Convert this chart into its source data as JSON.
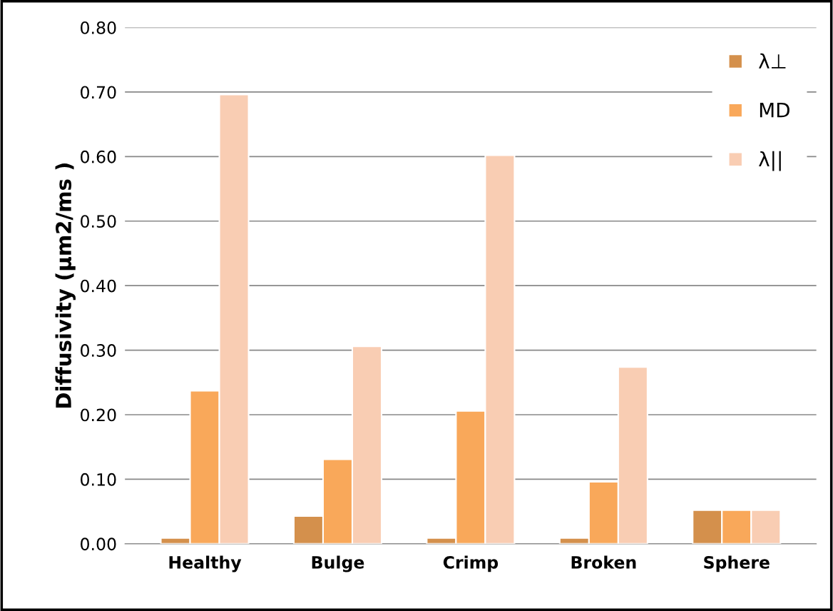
{
  "chart_data": {
    "type": "bar",
    "ylabel": "Diffusivity (μm2/ms )",
    "categories": [
      "Healthy",
      "Bulge",
      "Crimp",
      "Broken",
      "Sphere"
    ],
    "series": [
      {
        "name": "λ⊥",
        "color": "#d4904c",
        "values": [
          0.009,
          0.043,
          0.009,
          0.009,
          0.052
        ]
      },
      {
        "name": "MD",
        "color": "#f9a85a",
        "values": [
          0.237,
          0.131,
          0.206,
          0.096,
          0.052
        ]
      },
      {
        "name": "λ||",
        "color": "#f9cdb3",
        "values": [
          0.696,
          0.306,
          0.602,
          0.274,
          0.052
        ]
      }
    ],
    "ylim": [
      0,
      0.8
    ],
    "yticks": [
      {
        "value": 0,
        "label": "0.00"
      },
      {
        "value": 0.1,
        "label": "0.10"
      },
      {
        "value": 0.2,
        "label": "0.20"
      },
      {
        "value": 0.3,
        "label": "0.30"
      },
      {
        "value": 0.4,
        "label": "0.40"
      },
      {
        "value": 0.5,
        "label": "0.50"
      },
      {
        "value": 0.6,
        "label": "0.60"
      },
      {
        "value": 0.7,
        "label": "0.70"
      },
      {
        "value": 0.8,
        "label": "0.80"
      }
    ],
    "grid": "y",
    "legend": "top right"
  }
}
